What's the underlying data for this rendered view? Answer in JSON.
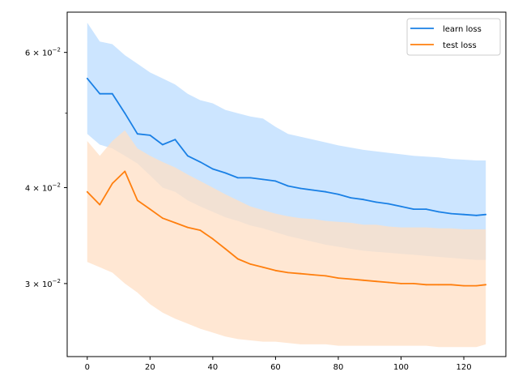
{
  "chart_data": {
    "type": "line",
    "title": "",
    "xlabel": "",
    "ylabel": "",
    "yscale": "log",
    "xlim": [
      -6.4,
      133.4
    ],
    "ylim": [
      0.0241,
      0.0677
    ],
    "grid": false,
    "legend_position": "top-right",
    "x_ticks": [
      0,
      20,
      40,
      60,
      80,
      100,
      120
    ],
    "x_tick_labels": [
      "0",
      "20",
      "40",
      "60",
      "80",
      "100",
      "120"
    ],
    "y_ticks": [
      0.03,
      0.04,
      0.06
    ],
    "y_tick_labels": [
      {
        "base": "3 × 10",
        "exp": "−2"
      },
      {
        "base": "4 × 10",
        "exp": "−2"
      },
      {
        "base": "6 × 10",
        "exp": "−2"
      }
    ],
    "y_minor_ticks": [
      0.05
    ],
    "series": [
      {
        "name": "learn loss",
        "color": "#1a80e5",
        "band_color": "#cce5ff",
        "x": [
          0,
          4,
          8,
          12,
          16,
          20,
          24,
          28,
          32,
          36,
          40,
          44,
          48,
          52,
          56,
          60,
          64,
          68,
          72,
          76,
          80,
          84,
          88,
          92,
          96,
          100,
          104,
          108,
          112,
          116,
          120,
          124,
          127
        ],
        "mean": [
          0.0555,
          0.053,
          0.053,
          0.05,
          0.047,
          0.0468,
          0.0455,
          0.0462,
          0.044,
          0.0432,
          0.0423,
          0.0418,
          0.0412,
          0.0412,
          0.041,
          0.0408,
          0.0402,
          0.0399,
          0.0397,
          0.0395,
          0.0392,
          0.0388,
          0.0386,
          0.0383,
          0.0381,
          0.0378,
          0.0375,
          0.0375,
          0.0372,
          0.037,
          0.0369,
          0.0368,
          0.0369
        ],
        "upper": [
          0.0656,
          0.062,
          0.0615,
          0.0595,
          0.058,
          0.0565,
          0.0555,
          0.0545,
          0.053,
          0.052,
          0.0515,
          0.0505,
          0.05,
          0.0495,
          0.0492,
          0.048,
          0.047,
          0.0466,
          0.0462,
          0.0458,
          0.0454,
          0.0451,
          0.0448,
          0.0446,
          0.0444,
          0.0442,
          0.044,
          0.0439,
          0.0438,
          0.0436,
          0.0435,
          0.0434,
          0.0434
        ],
        "lower": [
          0.047,
          0.0455,
          0.045,
          0.044,
          0.043,
          0.0415,
          0.04,
          0.0395,
          0.0385,
          0.0378,
          0.0372,
          0.0366,
          0.0362,
          0.0357,
          0.0354,
          0.035,
          0.0346,
          0.0343,
          0.034,
          0.0337,
          0.0335,
          0.0333,
          0.0331,
          0.033,
          0.0329,
          0.0328,
          0.0327,
          0.0326,
          0.0325,
          0.0324,
          0.0323,
          0.0322,
          0.0322
        ]
      },
      {
        "name": "test loss",
        "color": "#ff7f0e",
        "band_color": "#ffdfc4",
        "x": [
          0,
          4,
          8,
          12,
          16,
          20,
          24,
          28,
          32,
          36,
          40,
          44,
          48,
          52,
          56,
          60,
          64,
          68,
          72,
          76,
          80,
          84,
          88,
          92,
          96,
          100,
          104,
          108,
          112,
          116,
          120,
          124,
          127
        ],
        "mean": [
          0.0395,
          0.038,
          0.0405,
          0.042,
          0.0385,
          0.0375,
          0.0365,
          0.036,
          0.0355,
          0.0352,
          0.0343,
          0.0333,
          0.0323,
          0.0318,
          0.0315,
          0.0312,
          0.031,
          0.0309,
          0.0308,
          0.0307,
          0.0305,
          0.0304,
          0.0303,
          0.0302,
          0.0301,
          0.03,
          0.03,
          0.0299,
          0.0299,
          0.0299,
          0.0298,
          0.0298,
          0.0299
        ],
        "upper": [
          0.046,
          0.044,
          0.046,
          0.0475,
          0.045,
          0.044,
          0.0432,
          0.0425,
          0.0416,
          0.0408,
          0.04,
          0.0392,
          0.0385,
          0.0378,
          0.0374,
          0.037,
          0.0367,
          0.0365,
          0.0364,
          0.0362,
          0.0361,
          0.036,
          0.0358,
          0.0358,
          0.0356,
          0.0355,
          0.0355,
          0.0355,
          0.0354,
          0.0354,
          0.0353,
          0.0353,
          0.0353
        ],
        "lower": [
          0.032,
          0.0315,
          0.031,
          0.03,
          0.0292,
          0.0282,
          0.0275,
          0.027,
          0.0266,
          0.0262,
          0.0259,
          0.0256,
          0.0254,
          0.0253,
          0.0252,
          0.0252,
          0.0251,
          0.025,
          0.025,
          0.025,
          0.0249,
          0.0249,
          0.0249,
          0.0249,
          0.0249,
          0.0249,
          0.0249,
          0.0249,
          0.0248,
          0.0248,
          0.0248,
          0.0248,
          0.025
        ]
      }
    ]
  }
}
